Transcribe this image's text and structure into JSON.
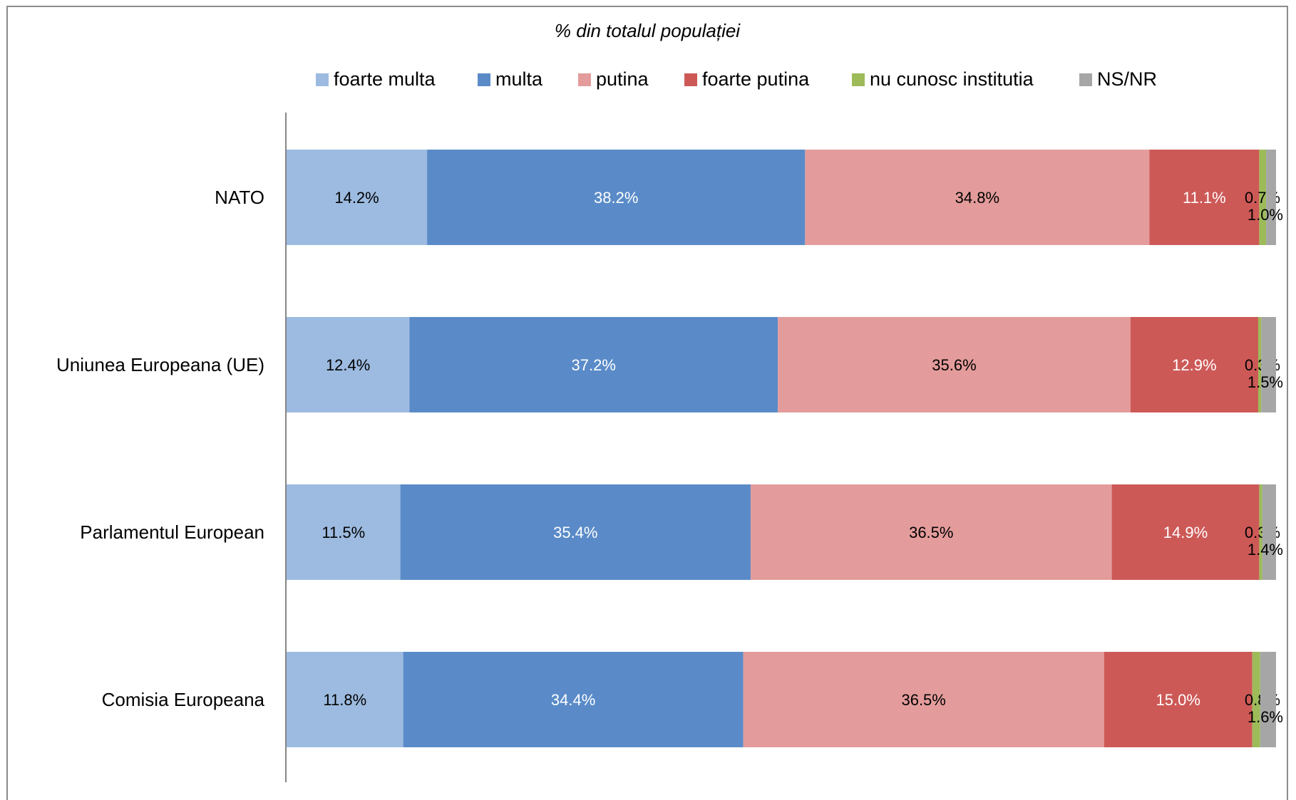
{
  "chart_data": {
    "type": "bar",
    "orientation": "horizontal",
    "stacked": true,
    "percent_stacked": true,
    "title": "% din totalul populației",
    "categories": [
      "NATO",
      "Uniunea Europeana (UE)",
      "Parlamentul European",
      "Comisia Europeana"
    ],
    "series": [
      {
        "name": "foarte multa",
        "color": "#9dbbe0",
        "label_color": "#000000",
        "values": [
          14.2,
          12.4,
          11.5,
          11.8
        ]
      },
      {
        "name": "multa",
        "color": "#5a8bc8",
        "label_color": "#ffffff",
        "values": [
          38.2,
          37.2,
          35.4,
          34.4
        ]
      },
      {
        "name": "putina",
        "color": "#e39c9b",
        "label_color": "#000000",
        "values": [
          34.8,
          35.6,
          36.5,
          36.5
        ]
      },
      {
        "name": "foarte putina",
        "color": "#cd5957",
        "label_color": "#ffffff",
        "values": [
          11.1,
          12.9,
          14.9,
          15.0
        ]
      },
      {
        "name": "nu cunosc institutia",
        "color": "#9dbb59",
        "label_color": "#000000",
        "values": [
          0.7,
          0.3,
          0.3,
          0.8
        ]
      },
      {
        "name": "NS/NR",
        "color": "#a6a6a6",
        "label_color": "#000000",
        "values": [
          1.0,
          1.5,
          1.4,
          1.6
        ]
      }
    ],
    "value_format": "{v}%",
    "legend_position": "top",
    "grid": false
  }
}
